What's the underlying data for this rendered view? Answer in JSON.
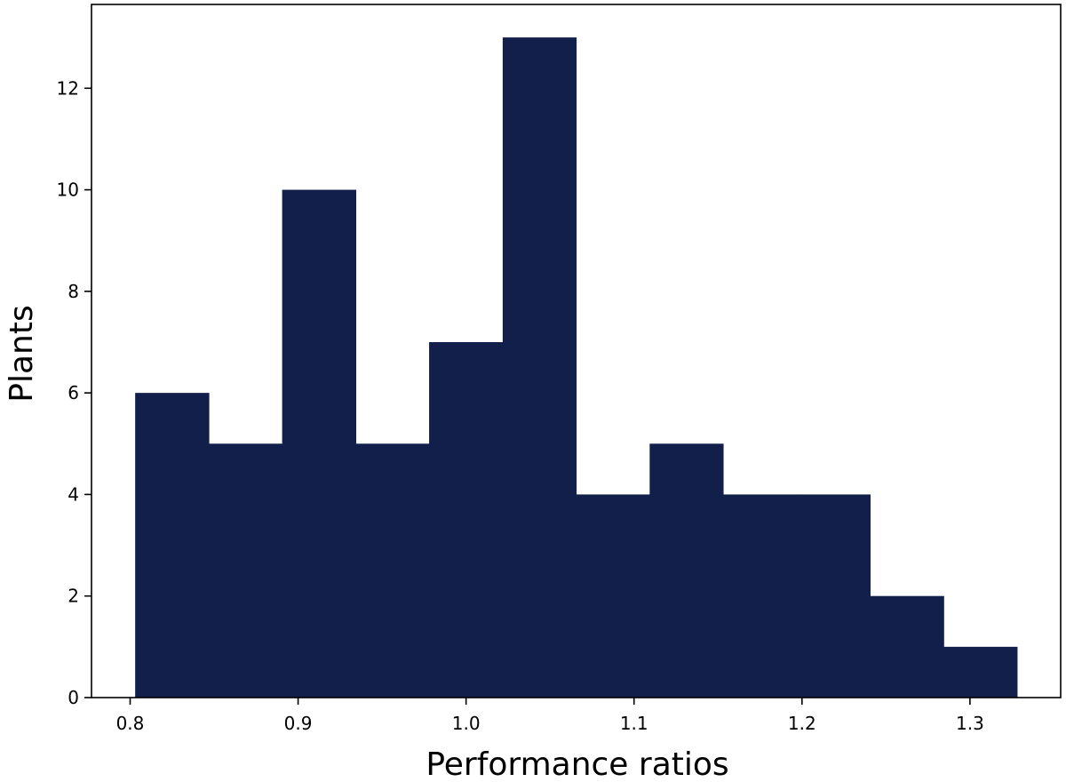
{
  "chart_data": {
    "type": "bar",
    "subtype": "histogram",
    "title": "",
    "xlabel": "Performance ratios",
    "ylabel": "Plants",
    "bar_color": "#111f4a",
    "bin_edges": [
      0.803,
      0.8468,
      0.8905,
      0.9343,
      0.978,
      1.0218,
      1.0655,
      1.1093,
      1.153,
      1.1968,
      1.2405,
      1.2843,
      1.328
    ],
    "values": [
      6,
      5,
      10,
      5,
      7,
      13,
      4,
      5,
      4,
      4,
      2,
      1
    ],
    "xlim": [
      0.777,
      1.354
    ],
    "ylim": [
      0,
      13.65
    ],
    "xticks": [
      0.8,
      0.9,
      1.0,
      1.1,
      1.2,
      1.3
    ],
    "xtick_labels": [
      "0.8",
      "0.9",
      "1.0",
      "1.1",
      "1.2",
      "1.3"
    ],
    "yticks": [
      0,
      2,
      4,
      6,
      8,
      10,
      12
    ],
    "ytick_labels": [
      "0",
      "2",
      "4",
      "6",
      "8",
      "10",
      "12"
    ],
    "grid": false,
    "legend": "none"
  }
}
